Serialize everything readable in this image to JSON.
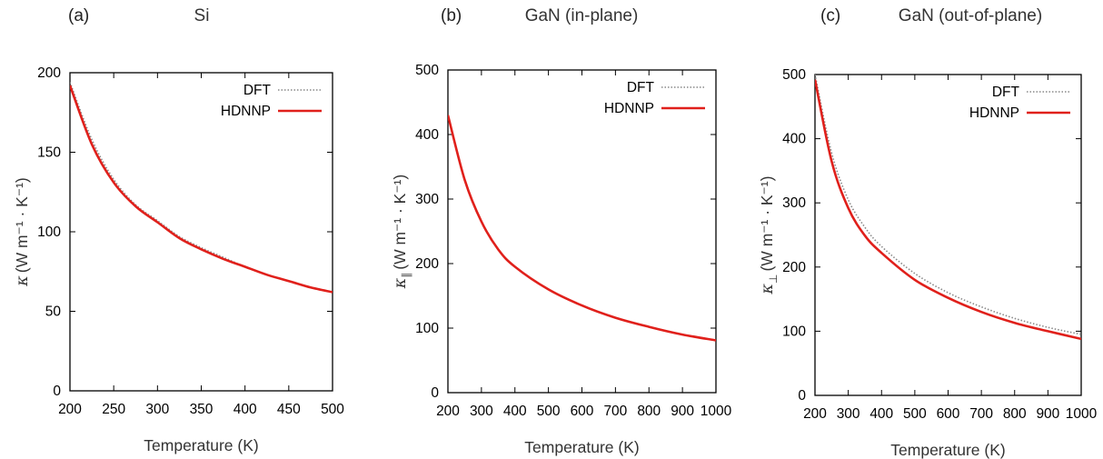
{
  "chart_data": [
    {
      "type": "line",
      "panel_label": "(a)",
      "title": "Si",
      "xlabel": "Temperature (K)",
      "ylabel": {
        "symbol": "κ",
        "sub": "",
        "units": "(W m⁻¹ · K⁻¹)"
      },
      "xlim": [
        200,
        500
      ],
      "ylim": [
        0,
        200
      ],
      "xticks": [
        200,
        250,
        300,
        350,
        400,
        450,
        500
      ],
      "yticks": [
        0,
        50,
        100,
        150,
        200
      ],
      "grid": false,
      "legend": "top-right",
      "series": [
        {
          "name": "DFT",
          "style": "dotted",
          "color": "#888888",
          "x": [
            200,
            225,
            250,
            275,
            300,
            325,
            350,
            375,
            400,
            425,
            450,
            475,
            500
          ],
          "y": [
            194,
            158,
            133,
            117,
            107,
            97,
            90,
            84,
            78,
            73,
            69,
            65,
            62
          ]
        },
        {
          "name": "HDNNP",
          "style": "solid",
          "color": "#e0201b",
          "x": [
            200,
            225,
            250,
            275,
            300,
            325,
            350,
            375,
            400,
            425,
            450,
            475,
            500
          ],
          "y": [
            192,
            155,
            131,
            116,
            106,
            96,
            89,
            83,
            78,
            73,
            69,
            65,
            62
          ]
        }
      ]
    },
    {
      "type": "line",
      "panel_label": "(b)",
      "title": "GaN (in-plane)",
      "xlabel": "Temperature (K)",
      "ylabel": {
        "symbol": "κ",
        "sub": "∥",
        "units": "(W m⁻¹ · K⁻¹)"
      },
      "xlim": [
        200,
        1000
      ],
      "ylim": [
        0,
        500
      ],
      "xticks": [
        200,
        300,
        400,
        500,
        600,
        700,
        800,
        900,
        1000
      ],
      "yticks": [
        0,
        100,
        200,
        300,
        400,
        500
      ],
      "grid": false,
      "legend": "top-right",
      "series": [
        {
          "name": "DFT",
          "style": "dotted",
          "color": "#888888",
          "x": [
            200,
            250,
            300,
            350,
            400,
            500,
            600,
            700,
            800,
            900,
            1000
          ],
          "y": [
            430,
            330,
            265,
            222,
            195,
            160,
            135,
            116,
            102,
            90,
            81
          ]
        },
        {
          "name": "HDNNP",
          "style": "solid",
          "color": "#e0201b",
          "x": [
            200,
            250,
            300,
            350,
            400,
            500,
            600,
            700,
            800,
            900,
            1000
          ],
          "y": [
            430,
            330,
            265,
            222,
            195,
            160,
            135,
            116,
            102,
            90,
            81
          ]
        }
      ]
    },
    {
      "type": "line",
      "panel_label": "(c)",
      "title": "GaN (out-of-plane)",
      "xlabel": "Temperature (K)",
      "ylabel": {
        "symbol": "κ",
        "sub": "⊥",
        "units": "(W m⁻¹ · K⁻¹)"
      },
      "xlim": [
        200,
        1000
      ],
      "ylim": [
        0,
        500
      ],
      "xticks": [
        200,
        300,
        400,
        500,
        600,
        700,
        800,
        900,
        1000
      ],
      "yticks": [
        0,
        100,
        200,
        300,
        400,
        500
      ],
      "grid": false,
      "legend": "top-right",
      "series": [
        {
          "name": "DFT",
          "style": "dotted",
          "color": "#888888",
          "x": [
            200,
            250,
            300,
            350,
            400,
            500,
            600,
            700,
            800,
            900,
            1000
          ],
          "y": [
            500,
            378,
            305,
            262,
            232,
            190,
            160,
            138,
            120,
            106,
            95
          ]
        },
        {
          "name": "HDNNP",
          "style": "solid",
          "color": "#e0201b",
          "x": [
            200,
            250,
            300,
            350,
            400,
            500,
            600,
            700,
            800,
            900,
            1000
          ],
          "y": [
            492,
            365,
            292,
            249,
            222,
            180,
            152,
            130,
            113,
            100,
            88
          ]
        }
      ]
    }
  ]
}
